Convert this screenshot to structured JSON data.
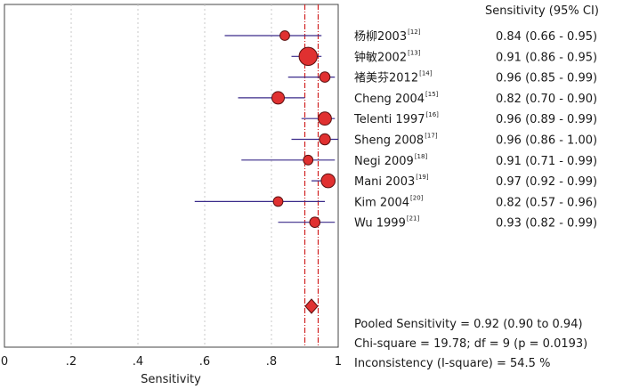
{
  "chart_data": {
    "type": "forest",
    "value_header": "Sensitivity (95% CI)",
    "xlabel": "Sensitivity",
    "xlim": [
      0,
      1
    ],
    "x_ticks": [
      "0",
      ".2",
      ".4",
      ".6",
      ".8",
      "1"
    ],
    "x_tick_values": [
      0,
      0.2,
      0.4,
      0.6,
      0.8,
      1.0
    ],
    "studies": [
      {
        "name": "杨柳2003",
        "ref": "[12]",
        "estimate": 0.84,
        "lower": 0.66,
        "upper": 0.95,
        "weight": 3,
        "text": "0.84 (0.66 - 0.95)"
      },
      {
        "name": "钟敏2002",
        "ref": "[13]",
        "estimate": 0.91,
        "lower": 0.86,
        "upper": 0.95,
        "weight": 9,
        "text": "0.91 (0.86 - 0.95)"
      },
      {
        "name": "褚美芬2012",
        "ref": "[14]",
        "estimate": 0.96,
        "lower": 0.85,
        "upper": 0.99,
        "weight": 3.5,
        "text": "0.96 (0.85 - 0.99)"
      },
      {
        "name": "Cheng 2004",
        "ref": "[15]",
        "estimate": 0.82,
        "lower": 0.7,
        "upper": 0.9,
        "weight": 5,
        "text": "0.82 (0.70 - 0.90)"
      },
      {
        "name": "Telenti 1997",
        "ref": "[16]",
        "estimate": 0.96,
        "lower": 0.89,
        "upper": 0.99,
        "weight": 5.5,
        "text": "0.96 (0.89 - 0.99)"
      },
      {
        "name": "Sheng 2008",
        "ref": "[17]",
        "estimate": 0.96,
        "lower": 0.86,
        "upper": 1.0,
        "weight": 4,
        "text": "0.96 (0.86 - 1.00)"
      },
      {
        "name": "Negi 2009",
        "ref": "[18]",
        "estimate": 0.91,
        "lower": 0.71,
        "upper": 0.99,
        "weight": 3,
        "text": "0.91 (0.71 - 0.99)"
      },
      {
        "name": "Mani 2003",
        "ref": "[19]",
        "estimate": 0.97,
        "lower": 0.92,
        "upper": 0.99,
        "weight": 6,
        "text": "0.97 (0.92 - 0.99)"
      },
      {
        "name": "Kim 2004",
        "ref": "[20]",
        "estimate": 0.82,
        "lower": 0.57,
        "upper": 0.96,
        "weight": 3,
        "text": "0.82 (0.57 - 0.96)"
      },
      {
        "name": "Wu 1999",
        "ref": "[21]",
        "estimate": 0.93,
        "lower": 0.82,
        "upper": 0.99,
        "weight": 3.5,
        "text": "0.93 (0.82 - 0.99)"
      }
    ],
    "pooled": {
      "estimate": 0.92,
      "lower": 0.9,
      "upper": 0.94
    },
    "summary_lines": [
      "Pooled Sensitivity = 0.92 (0.90 to 0.94)",
      "Chi-square = 19.78; df = 9 (p = 0.0193)",
      "Inconsistency (I-square) = 54.5 %"
    ],
    "grid": true,
    "colors": {
      "marker": "#e03030",
      "marker_edge": "#5a1010",
      "ci_line": "#3a2a8a",
      "pooled_line": "#d02020",
      "grid": "#c8c8c8",
      "frame": "#444444"
    }
  }
}
